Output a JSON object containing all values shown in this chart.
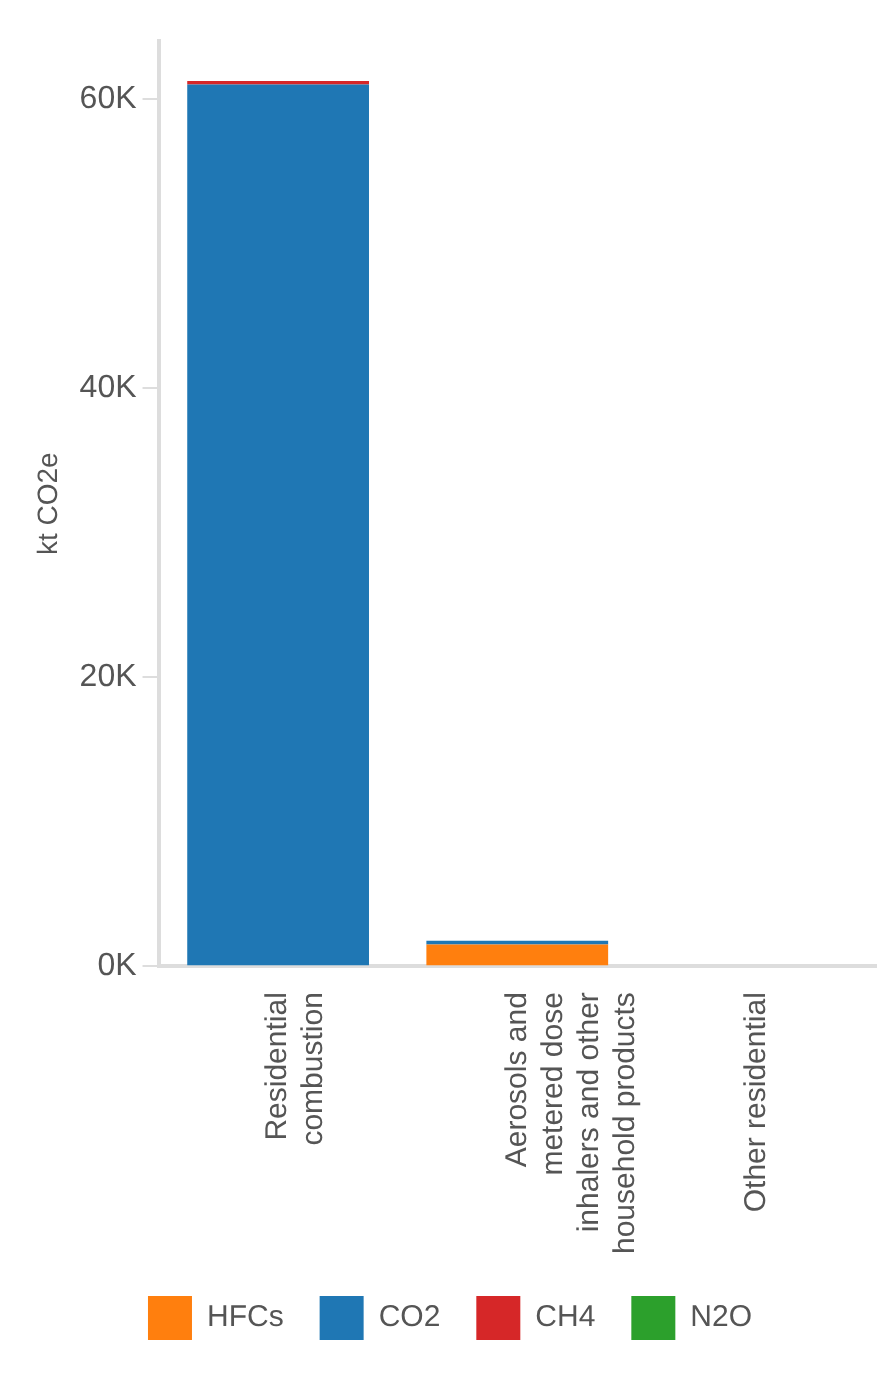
{
  "chart_data": {
    "type": "bar",
    "ylabel": "kt CO2e",
    "categories": [
      "Residential combustion",
      "Aerosols and metered dose inhalers and other household products",
      "Other residential"
    ],
    "stacked": true,
    "ylim": [
      0,
      64000
    ],
    "yticks": [
      {
        "value": 0,
        "label": "0K"
      },
      {
        "value": 20000,
        "label": "20K"
      },
      {
        "value": 40000,
        "label": "40K"
      },
      {
        "value": 60000,
        "label": "60K"
      }
    ],
    "grid": false,
    "legend": "bottom",
    "series": [
      {
        "name": "HFCs",
        "color": "#ff7f0e",
        "values": [
          0,
          1500,
          0
        ]
      },
      {
        "name": "CO2",
        "color": "#1f77b4",
        "values": [
          61000,
          250,
          0
        ]
      },
      {
        "name": "CH4",
        "color": "#d62728",
        "values": [
          250,
          0,
          0
        ]
      },
      {
        "name": "N2O",
        "color": "#2ca02c",
        "values": [
          0,
          0,
          0
        ]
      }
    ]
  }
}
